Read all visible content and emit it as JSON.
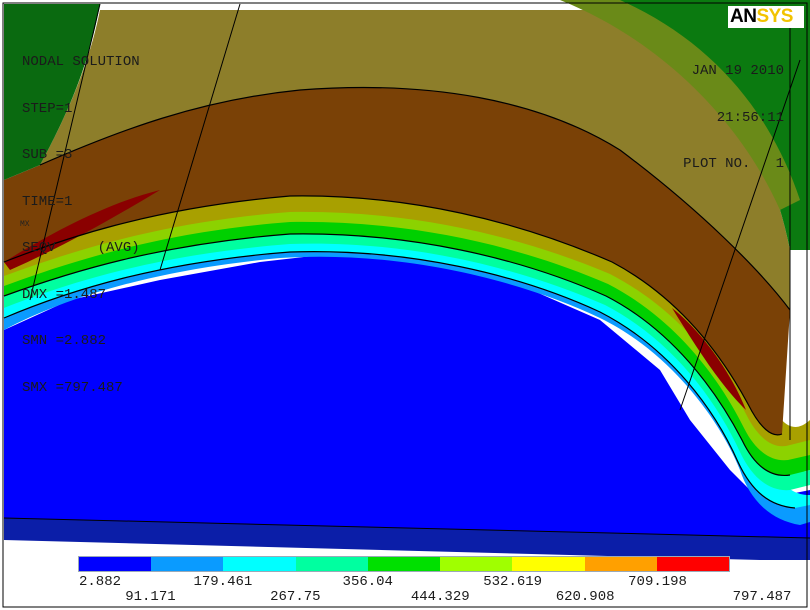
{
  "info_lines": [
    "NODAL SOLUTION",
    "STEP=1",
    "SUB =3",
    "TIME=1",
    "SEQV     (AVG)",
    "DMX =1.487",
    "SMN =2.882",
    "SMX =797.487"
  ],
  "stamp": {
    "date": "JAN 19 2010",
    "time": "21:56:11",
    "plot": "PLOT NO.   1"
  },
  "logo": {
    "an": "AN",
    "sys": "SYS"
  },
  "mx_marker": "MX",
  "legend": {
    "colors": [
      "#0000ff",
      "#0a9bff",
      "#00ffff",
      "#00ffa0",
      "#00e000",
      "#a0ff00",
      "#ffff00",
      "#ffa000",
      "#ff0000"
    ],
    "values": [
      "2.882",
      "91.171",
      "179.461",
      "267.75",
      "356.04",
      "444.329",
      "532.619",
      "620.908",
      "709.198",
      "797.487"
    ]
  }
}
